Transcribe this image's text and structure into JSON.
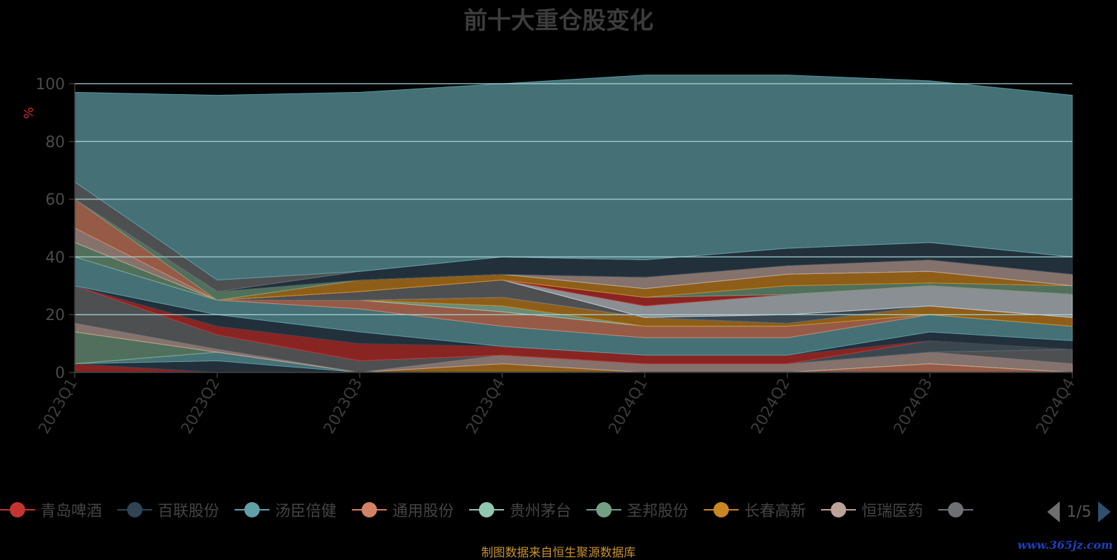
{
  "chart_data": {
    "type": "area",
    "stacked": true,
    "title": "前十大重仓股变化",
    "ylabel": "%",
    "ylim": [
      0,
      100
    ],
    "yticks": [
      0,
      20,
      40,
      60,
      80,
      100
    ],
    "categories": [
      "2023Q1",
      "2023Q2",
      "2023Q3",
      "2023Q4",
      "2024Q1",
      "2024Q2",
      "2024Q3",
      "2024Q4"
    ],
    "grid": true,
    "legend_position": "bottom",
    "series": [
      {
        "name": "青岛啤酒",
        "color": "#c23531",
        "values": [
          3,
          0,
          0,
          0,
          0,
          0,
          0,
          0
        ]
      },
      {
        "name": "百联股份",
        "color": "#2f4554",
        "values": [
          0,
          4,
          0,
          0,
          0,
          0,
          0,
          0
        ]
      },
      {
        "name": "汤臣倍健",
        "color": "#61a0a8",
        "values": [
          0,
          3,
          0,
          0,
          0,
          0,
          0,
          0
        ]
      },
      {
        "name": "通用股份",
        "color": "#d48265",
        "values": [
          0,
          0,
          0,
          0,
          0,
          0,
          3,
          0
        ]
      },
      {
        "name": "贵州茅台",
        "color": "#91c7ae",
        "values": [
          0,
          0,
          0,
          0,
          0,
          0,
          0,
          0
        ]
      },
      {
        "name": "圣邦股份",
        "color": "#749f83",
        "values": [
          11,
          0,
          0,
          0,
          0,
          0,
          0,
          0
        ]
      },
      {
        "name": "长春高新",
        "color": "#ca8622",
        "values": [
          0,
          0,
          0,
          3,
          0,
          0,
          0,
          0
        ]
      },
      {
        "name": "恒瑞医药",
        "color": "#bda29a",
        "values": [
          3,
          1,
          0,
          3,
          3,
          3,
          4,
          3
        ]
      },
      {
        "name": "",
        "color": "#6e7074",
        "values": [
          13,
          5,
          4,
          0,
          0,
          0,
          0,
          5
        ]
      },
      {
        "name": "",
        "color": "#546570",
        "values": [
          0,
          0,
          0,
          0,
          0,
          0,
          4,
          0
        ]
      },
      {
        "name": "",
        "color": "#c23531",
        "values": [
          0,
          3,
          6,
          3,
          3,
          3,
          0,
          0
        ]
      },
      {
        "name": "",
        "color": "#2f4554",
        "values": [
          0,
          4,
          4,
          0,
          0,
          0,
          3,
          3
        ]
      },
      {
        "name": "",
        "color": "#61a0a8",
        "values": [
          10,
          5,
          8,
          7,
          6,
          6,
          6,
          5
        ]
      },
      {
        "name": "",
        "color": "#d48265",
        "values": [
          0,
          0,
          3,
          5,
          4,
          4,
          0,
          0
        ]
      },
      {
        "name": "",
        "color": "#91c7ae",
        "values": [
          0,
          0,
          0,
          2,
          0,
          0,
          0,
          0
        ]
      },
      {
        "name": "",
        "color": "#749f83",
        "values": [
          5,
          0,
          0,
          0,
          0,
          0,
          0,
          0
        ]
      },
      {
        "name": "",
        "color": "#ca8622",
        "values": [
          0,
          0,
          0,
          3,
          3,
          1,
          3,
          3
        ]
      },
      {
        "name": "",
        "color": "#bda29a",
        "values": [
          5,
          0,
          0,
          0,
          0,
          0,
          0,
          0
        ]
      },
      {
        "name": "",
        "color": "#6e7074",
        "values": [
          0,
          0,
          3,
          6,
          0,
          0,
          0,
          0
        ]
      },
      {
        "name": "",
        "color": "#546570",
        "values": [
          0,
          0,
          0,
          0,
          0,
          3,
          0,
          0
        ]
      },
      {
        "name": "",
        "color": "#c4ccd3",
        "values": [
          0,
          0,
          0,
          0,
          4,
          7,
          7,
          8
        ]
      },
      {
        "name": "",
        "color": "#c23531",
        "values": [
          0,
          0,
          0,
          0,
          3,
          0,
          0,
          0
        ]
      },
      {
        "name": "",
        "color": "#749f83",
        "values": [
          0,
          0,
          0,
          0,
          0,
          3,
          1,
          3
        ]
      },
      {
        "name": "",
        "color": "#ca8622",
        "values": [
          0,
          0,
          4,
          2,
          3,
          4,
          4,
          0
        ]
      },
      {
        "name": "",
        "color": "#d48265",
        "values": [
          10,
          0,
          0,
          0,
          0,
          0,
          0,
          0
        ]
      },
      {
        "name": "",
        "color": "#749f83",
        "values": [
          0,
          3,
          0,
          0,
          0,
          0,
          0,
          0
        ]
      },
      {
        "name": "",
        "color": "#bda29a",
        "values": [
          0,
          0,
          0,
          0,
          4,
          3,
          4,
          4
        ]
      },
      {
        "name": "",
        "color": "#2f4554",
        "values": [
          0,
          0,
          3,
          6,
          6,
          6,
          6,
          6
        ]
      },
      {
        "name": "",
        "color": "#6e7074",
        "values": [
          6,
          4,
          0,
          0,
          0,
          0,
          0,
          0
        ]
      },
      {
        "name": "",
        "color": "#61a0a8",
        "values": [
          31,
          64,
          62,
          60,
          64,
          60,
          56,
          56
        ]
      }
    ]
  },
  "legend": {
    "items": [
      {
        "name": "青岛啤酒",
        "color": "#c23531"
      },
      {
        "name": "百联股份",
        "color": "#2f4554"
      },
      {
        "name": "汤臣倍健",
        "color": "#61a0a8"
      },
      {
        "name": "通用股份",
        "color": "#d48265"
      },
      {
        "name": "贵州茅台",
        "color": "#91c7ae"
      },
      {
        "name": "圣邦股份",
        "color": "#749f83"
      },
      {
        "name": "长春高新",
        "color": "#ca8622"
      },
      {
        "name": "恒瑞医药",
        "color": "#bda29a"
      },
      {
        "name": "",
        "color": "#6e7074"
      }
    ],
    "page": "1/5",
    "prev_icon": "triangle-left-icon",
    "next_icon": "triangle-right-icon"
  },
  "footer": {
    "source_note": "制图数据来自恒生聚源数据库",
    "watermark": "www.365jz.com"
  }
}
